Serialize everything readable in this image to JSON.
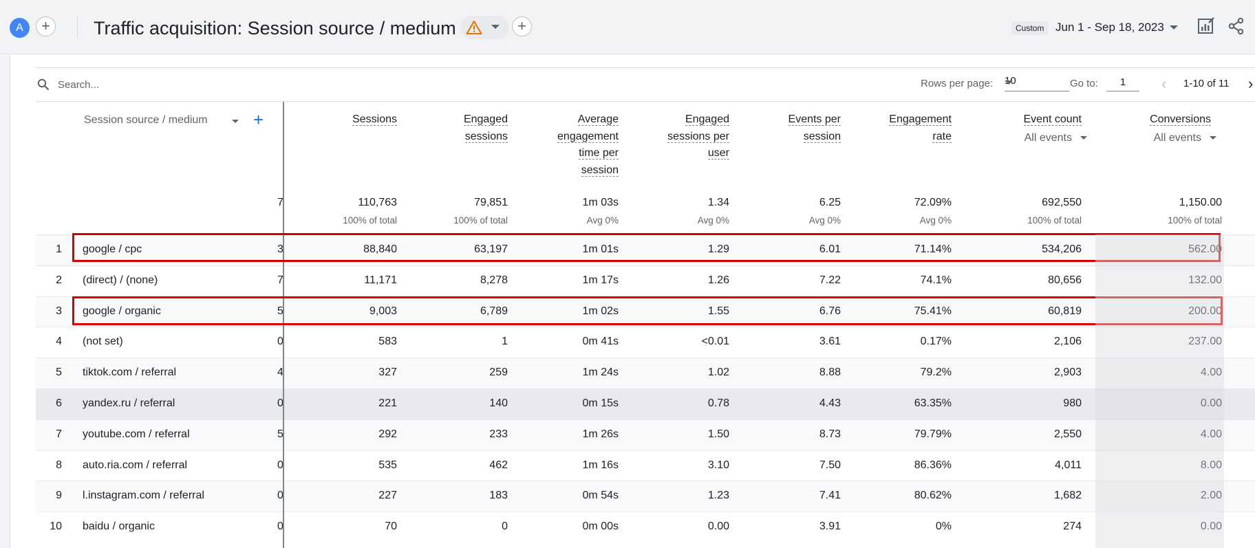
{
  "header": {
    "avatar_letter": "A",
    "title": "Traffic acquisition: Session source / medium",
    "date_chip": "Custom",
    "date_range": "Jun 1 - Sep 18, 2023"
  },
  "toolbar": {
    "search_placeholder": "Search...",
    "rows_per_page_label": "Rows per page:",
    "rows_per_page_value": "10",
    "go_to_label": "Go to:",
    "go_to_value": "1",
    "range_text": "1-10 of 11"
  },
  "table": {
    "dimension_header": "Session source / medium",
    "columns": [
      {
        "line1": "Sessions",
        "line2": "",
        "line3": "",
        "line4": "",
        "sub": ""
      },
      {
        "line1": "Engaged",
        "line2": "sessions",
        "line3": "",
        "line4": "",
        "sub": ""
      },
      {
        "line1": "Average",
        "line2": "engagement",
        "line3": "time per",
        "line4": "session",
        "sub": ""
      },
      {
        "line1": "Engaged",
        "line2": "sessions per",
        "line3": "user",
        "line4": "",
        "sub": ""
      },
      {
        "line1": "Events per",
        "line2": "session",
        "line3": "",
        "line4": "",
        "sub": ""
      },
      {
        "line1": "Engagement",
        "line2": "rate",
        "line3": "",
        "line4": "",
        "sub": ""
      },
      {
        "line1": "Event count",
        "line2": "",
        "line3": "",
        "line4": "",
        "sub": "All events"
      },
      {
        "line1": "Conversions",
        "line2": "",
        "line3": "",
        "line4": "",
        "sub": "All events"
      }
    ],
    "totals": [
      {
        "value": "110,763",
        "sub": "100% of total"
      },
      {
        "value": "79,851",
        "sub": "100% of total"
      },
      {
        "value": "1m 03s",
        "sub": "Avg 0%"
      },
      {
        "value": "1.34",
        "sub": "Avg 0%"
      },
      {
        "value": "6.25",
        "sub": "Avg 0%"
      },
      {
        "value": "72.09%",
        "sub": "Avg 0%"
      },
      {
        "value": "692,550",
        "sub": "100% of total"
      },
      {
        "value": "1,150.00",
        "sub": "100% of total"
      }
    ],
    "total_clip": "7",
    "rows": [
      {
        "num": "1",
        "dim": "google / cpc",
        "clip": "3",
        "cells": [
          "88,840",
          "63,197",
          "1m 01s",
          "1.29",
          "6.01",
          "71.14%",
          "534,206",
          "562.00"
        ]
      },
      {
        "num": "2",
        "dim": "(direct) / (none)",
        "clip": "7",
        "cells": [
          "11,171",
          "8,278",
          "1m 17s",
          "1.26",
          "7.22",
          "74.1%",
          "80,656",
          "132.00"
        ]
      },
      {
        "num": "3",
        "dim": "google / organic",
        "clip": "5",
        "cells": [
          "9,003",
          "6,789",
          "1m 02s",
          "1.55",
          "6.76",
          "75.41%",
          "60,819",
          "200.00"
        ]
      },
      {
        "num": "4",
        "dim": "(not set)",
        "clip": "0",
        "cells": [
          "583",
          "1",
          "0m 41s",
          "<0.01",
          "3.61",
          "0.17%",
          "2,106",
          "237.00"
        ]
      },
      {
        "num": "5",
        "dim": "tiktok.com / referral",
        "clip": "4",
        "cells": [
          "327",
          "259",
          "1m 24s",
          "1.02",
          "8.88",
          "79.2%",
          "2,903",
          "4.00"
        ]
      },
      {
        "num": "6",
        "dim": "yandex.ru / referral",
        "clip": "0",
        "cells": [
          "221",
          "140",
          "0m 15s",
          "0.78",
          "4.43",
          "63.35%",
          "980",
          "0.00"
        ]
      },
      {
        "num": "7",
        "dim": "youtube.com / referral",
        "clip": "5",
        "cells": [
          "292",
          "233",
          "1m 26s",
          "1.50",
          "8.73",
          "79.79%",
          "2,550",
          "4.00"
        ]
      },
      {
        "num": "8",
        "dim": "auto.ria.com / referral",
        "clip": "0",
        "cells": [
          "535",
          "462",
          "1m 16s",
          "3.10",
          "7.50",
          "86.36%",
          "4,011",
          "8.00"
        ]
      },
      {
        "num": "9",
        "dim": "l.instagram.com / referral",
        "clip": "0",
        "cells": [
          "227",
          "183",
          "0m 54s",
          "1.23",
          "7.41",
          "80.62%",
          "1,682",
          "2.00"
        ]
      },
      {
        "num": "10",
        "dim": "baidu / organic",
        "clip": "0",
        "cells": [
          "70",
          "0",
          "0m 00s",
          "0.00",
          "3.91",
          "0%",
          "274",
          "0.00"
        ]
      }
    ]
  },
  "colors": {
    "highlight": "#d50000",
    "hover_row": "#e8eaed",
    "striped_row": "#f8f9fa",
    "accent_blue": "#1a73e8"
  }
}
